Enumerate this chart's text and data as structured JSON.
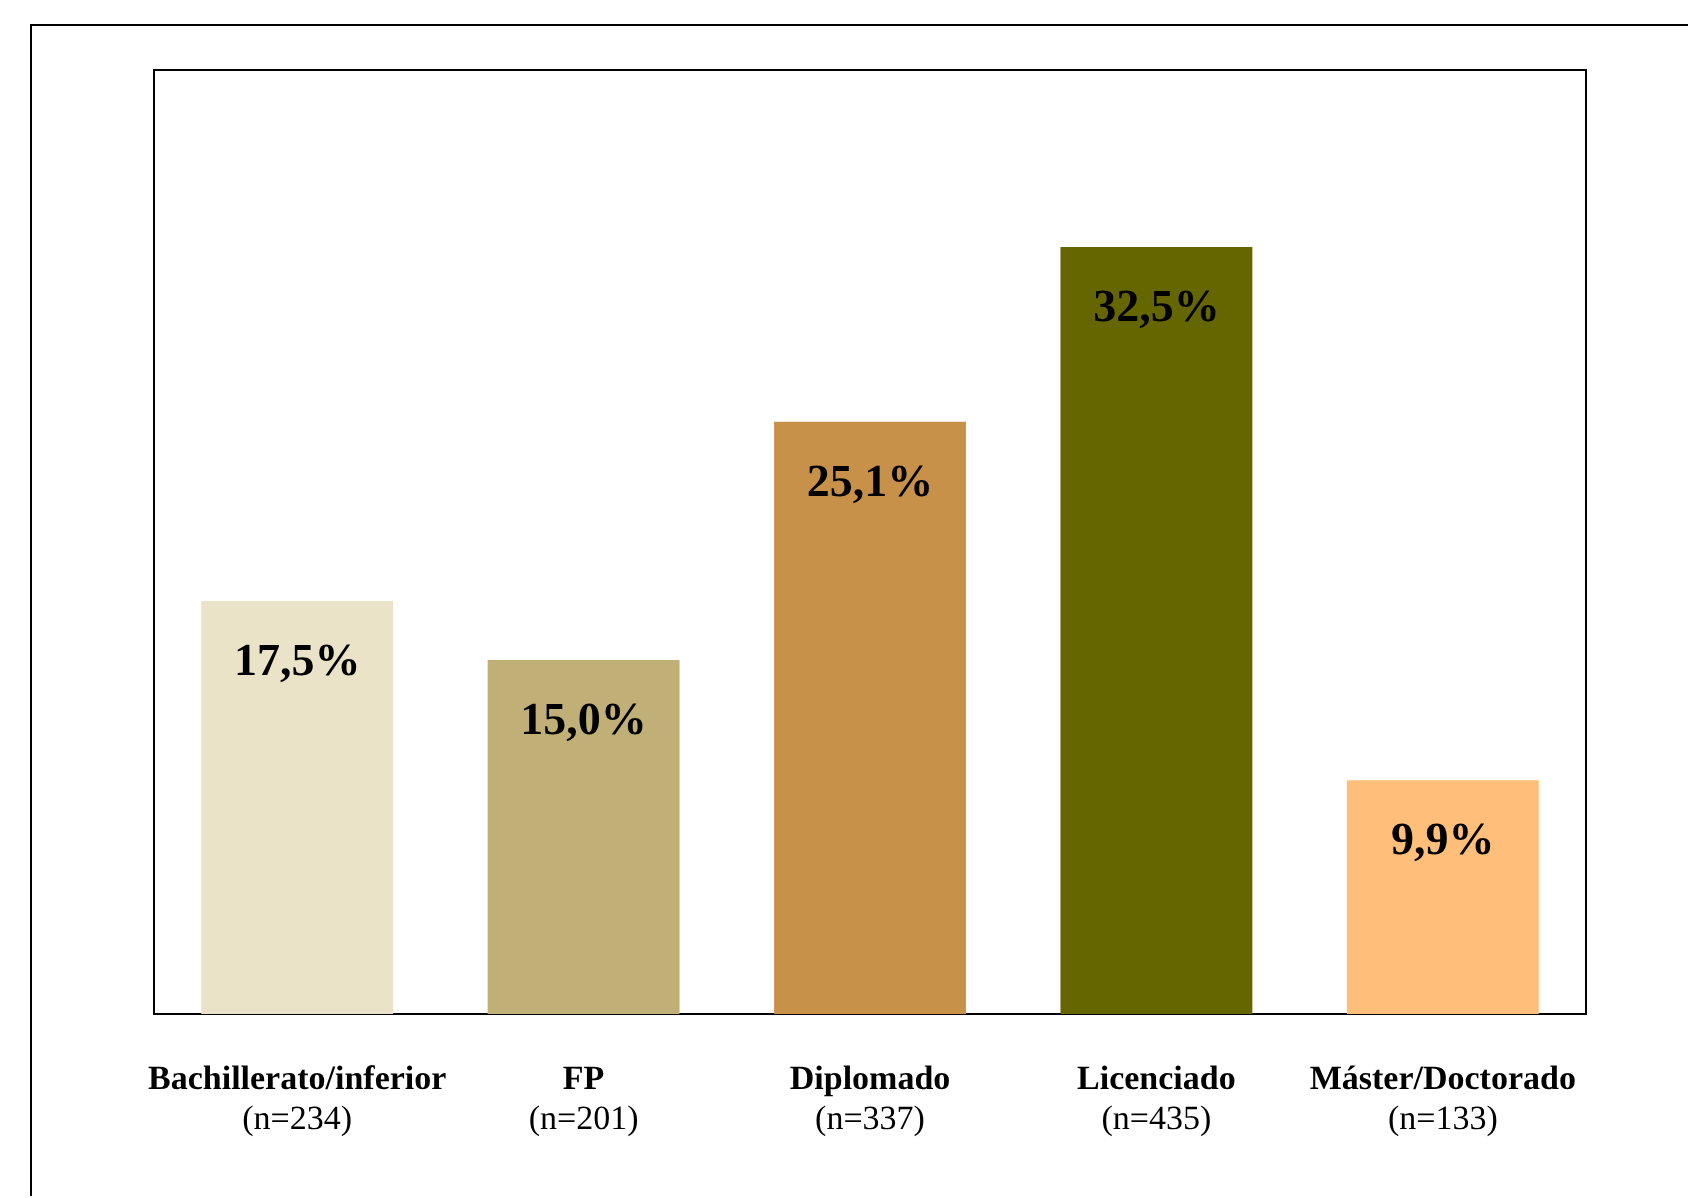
{
  "chart_data": {
    "type": "bar",
    "categories": [
      "Bachillerato/inferior\n(n=234)",
      "FP\n(n=201)",
      "Diplomado\n(n=337)",
      "Licenciado\n(n=435)",
      "Máster/Doctorado\n(n=133)"
    ],
    "values": [
      17.5,
      15.0,
      25.1,
      32.5,
      9.9
    ],
    "colors": [
      "#ebe3c8",
      "#c0b078",
      "#c8914a",
      "#666600",
      "#ffbf7a"
    ],
    "value_labels": [
      "17,5%",
      "15,0%",
      "25,1%",
      "32,5%",
      "9,9%"
    ],
    "ylim": [
      0,
      40
    ],
    "tick_labels": "x"
  }
}
